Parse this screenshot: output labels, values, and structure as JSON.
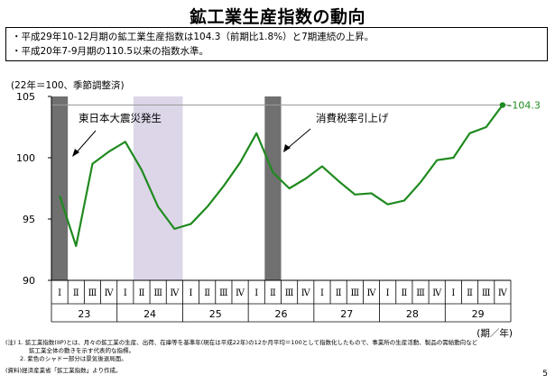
{
  "header": {
    "title": "鉱工業生産指数の動向"
  },
  "summary": {
    "line1": "・平成29年10-12月期の鉱工業生産指数は104.3（前期比1.8%）と7期連続の上昇。",
    "line2": "・平成20年7-9月期の110.5以来の指数水準。"
  },
  "chart_data": {
    "type": "line",
    "title": "",
    "ylabel": "(22年＝100、季節調整済)",
    "xlabel": "(期／年)",
    "ylim": [
      90,
      105
    ],
    "yticks": [
      90,
      95,
      100,
      105
    ],
    "quarters": [
      "Ⅰ",
      "Ⅱ",
      "Ⅲ",
      "Ⅳ",
      "Ⅰ",
      "Ⅱ",
      "Ⅲ",
      "Ⅳ",
      "Ⅰ",
      "Ⅱ",
      "Ⅲ",
      "Ⅳ",
      "Ⅰ",
      "Ⅱ",
      "Ⅲ",
      "Ⅳ",
      "Ⅰ",
      "Ⅱ",
      "Ⅲ",
      "Ⅳ",
      "Ⅰ",
      "Ⅱ",
      "Ⅲ",
      "Ⅳ",
      "Ⅰ",
      "Ⅱ",
      "Ⅲ",
      "Ⅳ"
    ],
    "years": [
      "23",
      "24",
      "25",
      "26",
      "27",
      "28",
      "29"
    ],
    "series": [
      {
        "name": "",
        "color": "#1f8a1f",
        "values": [
          96.9,
          92.8,
          99.5,
          100.5,
          101.3,
          99.0,
          96.0,
          94.2,
          94.6,
          96.0,
          97.7,
          99.6,
          102.0,
          98.8,
          97.5,
          98.3,
          99.3,
          98.1,
          97.0,
          97.1,
          96.2,
          96.5,
          98.0,
          99.8,
          100.0,
          102.0,
          102.5,
          104.3
        ]
      }
    ],
    "end_label": "104.3",
    "reference_line": 104.3,
    "shaded_periods": [
      {
        "type": "gray",
        "start_index": 0,
        "end_index": 0
      },
      {
        "type": "purple",
        "start_index": 5,
        "end_index": 7
      },
      {
        "type": "gray",
        "start_index": 13,
        "end_index": 13
      }
    ],
    "annotations": [
      {
        "text": "東日本大震災発生"
      },
      {
        "text": "消費税率引上げ"
      }
    ],
    "grid": false,
    "legend": "none"
  },
  "notes": {
    "line1": "(注) 1. 鉱工業指数(IIP)とは、月々の鉱工業の生産、出荷、在庫等を基準年(現在は平成22年)の12か月平均＝100として指数化したもので、事業所の生産活動、製品の需給動向など",
    "line2": "鉱工業全体の動きを示す代表的な指標。",
    "line3": "2. 紫色のシャドー部分は景気後退局面。",
    "source": "(資料)経済産業省「鉱工業指数」より作成。"
  },
  "page": {
    "number": "5"
  },
  "colors": {
    "line": "#1f8a1f",
    "gray_shade": "#707070",
    "purple_shade": "#dcd6e8"
  }
}
